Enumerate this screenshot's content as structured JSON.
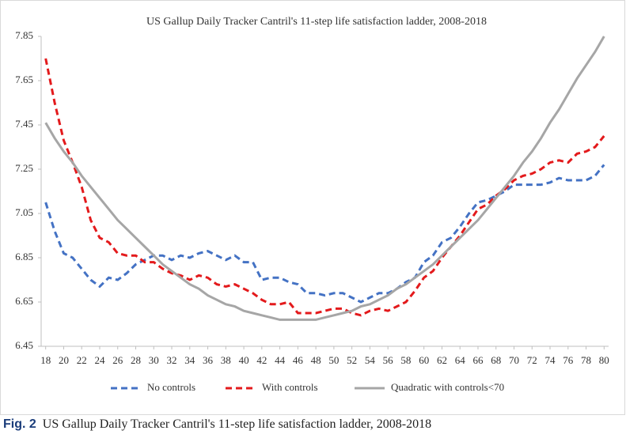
{
  "chart_data": {
    "type": "line",
    "title": "US Gallup Daily Tracker Cantril's 11-step life satisfaction ladder, 2008-2018",
    "x": [
      18,
      19,
      20,
      21,
      22,
      23,
      24,
      25,
      26,
      27,
      28,
      29,
      30,
      31,
      32,
      33,
      34,
      35,
      36,
      37,
      38,
      39,
      40,
      41,
      42,
      43,
      44,
      45,
      46,
      47,
      48,
      49,
      50,
      51,
      52,
      53,
      54,
      55,
      56,
      57,
      58,
      59,
      60,
      61,
      62,
      63,
      64,
      65,
      66,
      67,
      68,
      69,
      70,
      71,
      72,
      73,
      74,
      75,
      76,
      77,
      78,
      79,
      80
    ],
    "series": [
      {
        "name": "No controls",
        "color": "#4472c4",
        "line_style": "dashed",
        "values": [
          7.1,
          6.97,
          6.87,
          6.85,
          6.8,
          6.75,
          6.72,
          6.76,
          6.75,
          6.78,
          6.82,
          6.84,
          6.86,
          6.86,
          6.84,
          6.86,
          6.85,
          6.87,
          6.88,
          6.86,
          6.84,
          6.86,
          6.83,
          6.83,
          6.75,
          6.76,
          6.76,
          6.74,
          6.73,
          6.69,
          6.69,
          6.68,
          6.69,
          6.69,
          6.67,
          6.65,
          6.67,
          6.69,
          6.69,
          6.71,
          6.74,
          6.76,
          6.83,
          6.86,
          6.92,
          6.94,
          6.99,
          7.05,
          7.1,
          7.11,
          7.13,
          7.15,
          7.18,
          7.18,
          7.18,
          7.18,
          7.19,
          7.21,
          7.2,
          7.2,
          7.2,
          7.22,
          7.27
        ]
      },
      {
        "name": "With controls",
        "color": "#e31a1c",
        "line_style": "dashed",
        "values": [
          7.75,
          7.55,
          7.38,
          7.28,
          7.17,
          7.02,
          6.94,
          6.92,
          6.87,
          6.86,
          6.86,
          6.83,
          6.83,
          6.8,
          6.78,
          6.77,
          6.75,
          6.77,
          6.76,
          6.73,
          6.72,
          6.73,
          6.71,
          6.69,
          6.66,
          6.64,
          6.64,
          6.65,
          6.6,
          6.6,
          6.6,
          6.61,
          6.62,
          6.62,
          6.6,
          6.59,
          6.61,
          6.62,
          6.61,
          6.63,
          6.65,
          6.7,
          6.76,
          6.79,
          6.85,
          6.9,
          6.95,
          7.01,
          7.07,
          7.09,
          7.13,
          7.16,
          7.2,
          7.22,
          7.23,
          7.25,
          7.28,
          7.29,
          7.28,
          7.32,
          7.33,
          7.35,
          7.4
        ]
      },
      {
        "name": "Quadratic with controls<70",
        "color": "#a6a6a6",
        "line_style": "solid",
        "values": [
          7.46,
          7.39,
          7.33,
          7.28,
          7.22,
          7.17,
          7.12,
          7.07,
          7.02,
          6.98,
          6.94,
          6.9,
          6.86,
          6.82,
          6.79,
          6.76,
          6.73,
          6.71,
          6.68,
          6.66,
          6.64,
          6.63,
          6.61,
          6.6,
          6.59,
          6.58,
          6.57,
          6.57,
          6.57,
          6.57,
          6.57,
          6.58,
          6.59,
          6.6,
          6.61,
          6.63,
          6.64,
          6.66,
          6.68,
          6.71,
          6.73,
          6.76,
          6.79,
          6.82,
          6.86,
          6.9,
          6.94,
          6.98,
          7.02,
          7.07,
          7.12,
          7.17,
          7.22,
          7.28,
          7.33,
          7.39,
          7.46,
          7.52,
          7.59,
          7.66,
          7.72,
          7.78,
          7.85
        ]
      }
    ],
    "xlim": [
      17.5,
      80.5
    ],
    "xticks": [
      18,
      20,
      22,
      24,
      26,
      28,
      30,
      32,
      34,
      36,
      38,
      40,
      42,
      44,
      46,
      48,
      50,
      52,
      54,
      56,
      58,
      60,
      62,
      64,
      66,
      68,
      70,
      72,
      74,
      76,
      78,
      80
    ],
    "ylim": [
      6.45,
      7.85
    ],
    "yticks": [
      6.45,
      6.65,
      6.85,
      7.05,
      7.25,
      7.45,
      7.65,
      7.85
    ],
    "grid": false,
    "legend": "bottom"
  },
  "caption": {
    "label": "Fig. 2",
    "text": "US Gallup Daily Tracker Cantril's 11-step life satisfaction ladder, 2008-2018"
  }
}
